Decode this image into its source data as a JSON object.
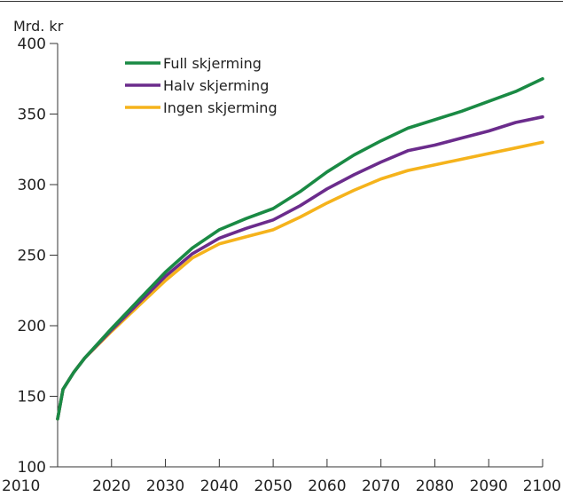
{
  "chart_data": {
    "type": "line",
    "title": "",
    "xlabel": "",
    "ylabel": "Mrd. kr",
    "xlim": [
      2010,
      2100
    ],
    "ylim": [
      100,
      400
    ],
    "x_ticks": [
      2010,
      2020,
      2030,
      2040,
      2050,
      2060,
      2070,
      2080,
      2090,
      2100
    ],
    "y_ticks": [
      100,
      150,
      200,
      250,
      300,
      350,
      400
    ],
    "grid": false,
    "legend": "top-left",
    "series": [
      {
        "name": "Full skjerming",
        "color": "#1a8a44",
        "points": [
          [
            2010,
            134
          ],
          [
            2011,
            155
          ],
          [
            2013,
            167
          ],
          [
            2015,
            177
          ],
          [
            2020,
            198
          ],
          [
            2025,
            218
          ],
          [
            2030,
            238
          ],
          [
            2035,
            255
          ],
          [
            2040,
            268
          ],
          [
            2045,
            276
          ],
          [
            2050,
            283
          ],
          [
            2055,
            295
          ],
          [
            2060,
            309
          ],
          [
            2065,
            321
          ],
          [
            2070,
            331
          ],
          [
            2075,
            340
          ],
          [
            2080,
            346
          ],
          [
            2085,
            352
          ],
          [
            2090,
            359
          ],
          [
            2095,
            366
          ],
          [
            2100,
            375
          ]
        ]
      },
      {
        "name": "Halv skjerming",
        "color": "#6b2c8c",
        "points": [
          [
            2010,
            134
          ],
          [
            2011,
            155
          ],
          [
            2013,
            167
          ],
          [
            2015,
            177
          ],
          [
            2020,
            197
          ],
          [
            2025,
            216
          ],
          [
            2030,
            235
          ],
          [
            2035,
            251
          ],
          [
            2040,
            262
          ],
          [
            2045,
            269
          ],
          [
            2050,
            275
          ],
          [
            2055,
            285
          ],
          [
            2060,
            297
          ],
          [
            2065,
            307
          ],
          [
            2070,
            316
          ],
          [
            2075,
            324
          ],
          [
            2080,
            328
          ],
          [
            2085,
            333
          ],
          [
            2090,
            338
          ],
          [
            2095,
            344
          ],
          [
            2100,
            348
          ]
        ]
      },
      {
        "name": "Ingen skjerming",
        "color": "#f5b31c",
        "points": [
          [
            2010,
            134
          ],
          [
            2011,
            155
          ],
          [
            2013,
            167
          ],
          [
            2015,
            177
          ],
          [
            2020,
            196
          ],
          [
            2025,
            214
          ],
          [
            2030,
            232
          ],
          [
            2035,
            248
          ],
          [
            2040,
            258
          ],
          [
            2045,
            263
          ],
          [
            2050,
            268
          ],
          [
            2055,
            277
          ],
          [
            2060,
            287
          ],
          [
            2065,
            296
          ],
          [
            2070,
            304
          ],
          [
            2075,
            310
          ],
          [
            2080,
            314
          ],
          [
            2085,
            318
          ],
          [
            2090,
            322
          ],
          [
            2095,
            326
          ],
          [
            2100,
            330
          ]
        ]
      }
    ]
  }
}
